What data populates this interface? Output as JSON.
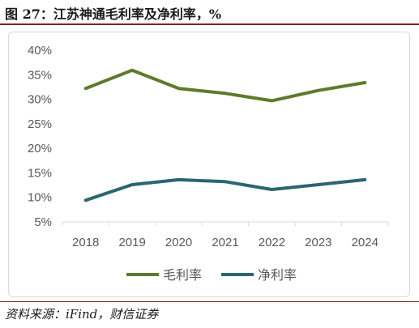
{
  "figure_title": "图 27：江苏神通毛利率及净利率，%",
  "source": "资料来源：iFind，财信证券",
  "colors": {
    "gross_margin": "#5f7a2b",
    "net_margin": "#2b6670",
    "rule": "#8c1d1d"
  },
  "chart_data": {
    "type": "line",
    "title": "",
    "xlabel": "",
    "ylabel": "",
    "categories": [
      "2018",
      "2019",
      "2020",
      "2021",
      "2022",
      "2023",
      "2024"
    ],
    "y_tick_labels": [
      "5%",
      "10%",
      "15%",
      "20%",
      "25%",
      "30%",
      "35%",
      "40%"
    ],
    "ylim": [
      5,
      40
    ],
    "y_unit": "%",
    "grid": false,
    "legend": "bottom-center",
    "series": [
      {
        "name": "毛利率",
        "values": [
          32.2,
          35.9,
          32.2,
          31.2,
          29.7,
          31.8,
          33.4
        ]
      },
      {
        "name": "净利率",
        "values": [
          9.4,
          12.6,
          13.6,
          13.2,
          11.6,
          12.6,
          13.6
        ]
      }
    ]
  }
}
